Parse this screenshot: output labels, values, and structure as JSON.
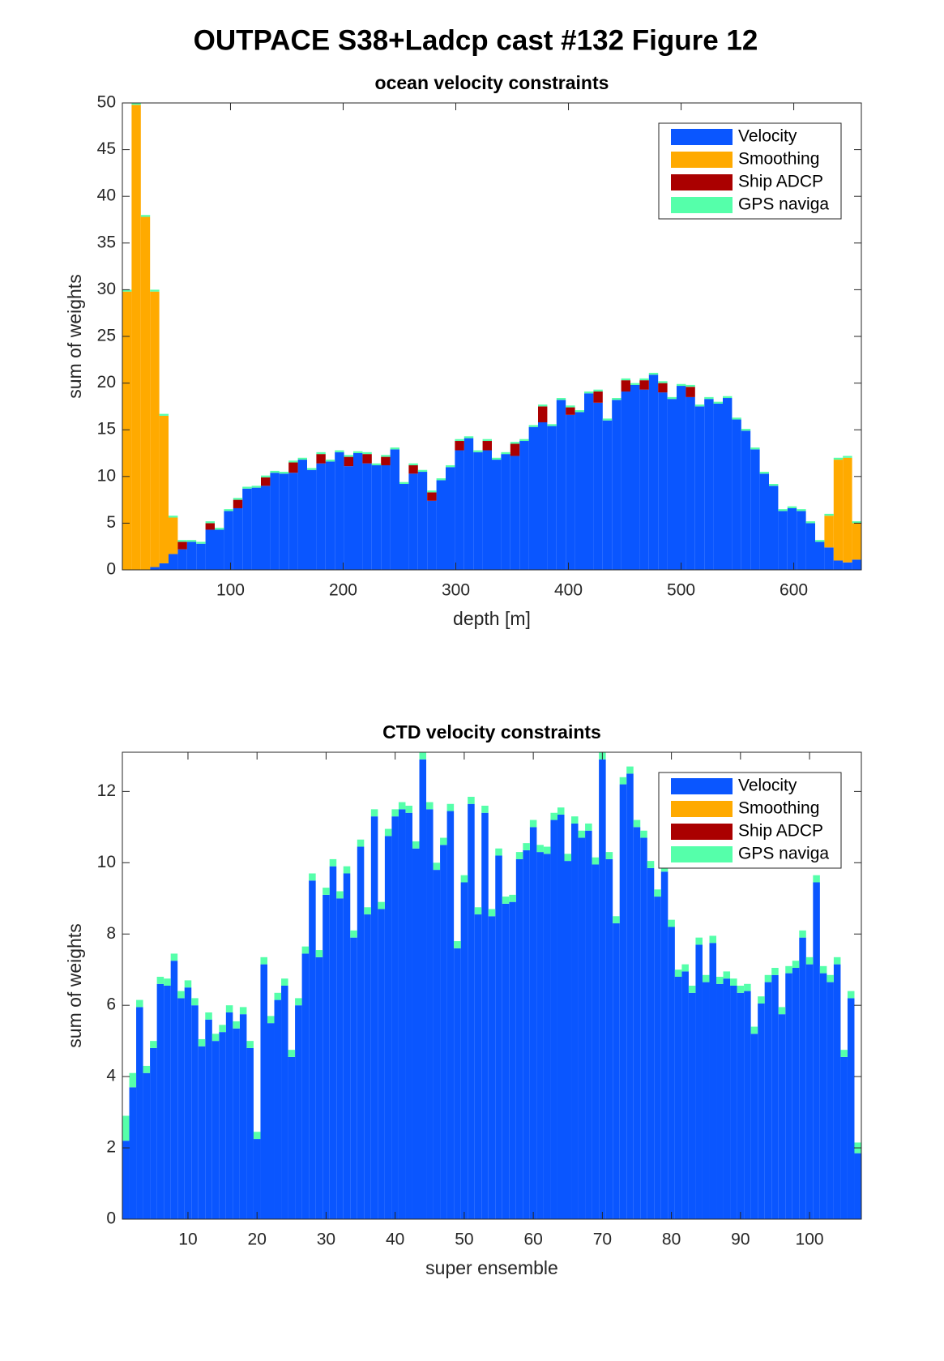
{
  "title": "OUTPACE S38+Ladcp cast #132  Figure 12",
  "chart_data": [
    {
      "type": "bar",
      "stacked": true,
      "title": "ocean velocity constraints",
      "xlabel": "depth [m]",
      "ylabel": "sum of weights",
      "x": [
        8.1,
        16.3,
        24.5,
        32.7,
        40.9,
        49.1,
        57.3,
        65.5,
        73.7,
        81.9,
        90.1,
        98.3,
        106.5,
        114.7,
        122.9,
        131.1,
        139.3,
        147.5,
        155.7,
        163.9,
        172.1,
        180.3,
        188.5,
        196.7,
        204.9,
        213.1,
        221.3,
        229.5,
        237.7,
        245.9,
        254.1,
        262.3,
        270.5,
        278.7,
        286.9,
        295.1,
        303.3,
        311.5,
        319.7,
        327.9,
        336.1,
        344.3,
        352.5,
        360.7,
        368.9,
        377.1,
        385.3,
        393.5,
        401.7,
        409.9,
        418.1,
        426.3,
        434.5,
        442.7,
        450.9,
        459.1,
        467.3,
        475.5,
        483.7,
        491.9,
        500.1,
        508.3,
        516.5,
        524.7,
        532.9,
        541.1,
        549.3,
        557.5,
        565.7,
        573.9,
        582.1,
        590.3,
        598.5,
        606.7,
        614.9,
        623.1,
        631.3,
        639.5,
        647.7,
        655.9
      ],
      "xlim": [
        4,
        660
      ],
      "xticks": [
        100,
        200,
        300,
        400,
        500,
        600
      ],
      "ylim": [
        0,
        50
      ],
      "yticks": [
        0,
        5,
        10,
        15,
        20,
        25,
        30,
        35,
        40,
        45,
        50
      ],
      "legend": "upper right",
      "series": [
        {
          "name": "Velocity",
          "color": "#0a56ff",
          "values": [
            0,
            0,
            0,
            0.3,
            0.7,
            1.7,
            2.2,
            3.0,
            2.8,
            4.3,
            4.3,
            6.3,
            6.6,
            8.7,
            8.8,
            9.0,
            10.4,
            10.3,
            10.4,
            11.8,
            10.7,
            11.4,
            11.6,
            12.6,
            11.1,
            12.5,
            11.4,
            11.2,
            11.2,
            12.9,
            9.2,
            10.3,
            10.5,
            7.4,
            9.6,
            11.0,
            12.8,
            14.1,
            12.6,
            12.8,
            11.8,
            12.4,
            12.2,
            13.8,
            15.3,
            15.8,
            15.4,
            18.2,
            16.6,
            16.9,
            18.9,
            17.9,
            16.0,
            18.2,
            19.1,
            19.8,
            19.3,
            20.9,
            19.0,
            18.3,
            19.7,
            18.5,
            17.5,
            18.3,
            17.8,
            18.4,
            16.1,
            14.9,
            12.9,
            10.3,
            9.0,
            6.3,
            6.6,
            6.3,
            5.0,
            3.0,
            2.4,
            1.0,
            0.8,
            1.1
          ]
        },
        {
          "name": "Smoothing",
          "color": "#ffaa00",
          "values": [
            29.8,
            49.8,
            37.8,
            29.5,
            15.8,
            3.9,
            0,
            0,
            0,
            0,
            0,
            0,
            0,
            0,
            0,
            0,
            0,
            0,
            0,
            0,
            0,
            0,
            0,
            0,
            0,
            0,
            0,
            0,
            0,
            0,
            0,
            0,
            0,
            0,
            0,
            0,
            0,
            0,
            0,
            0,
            0,
            0,
            0,
            0,
            0,
            0,
            0,
            0,
            0,
            0,
            0,
            0,
            0,
            0,
            0,
            0,
            0,
            0,
            0,
            0,
            0,
            0,
            0,
            0,
            0,
            0,
            0,
            0,
            0,
            0,
            0,
            0,
            0,
            0,
            0,
            0,
            3.4,
            10.8,
            11.2,
            3.9
          ]
        },
        {
          "name": "Ship ADCP",
          "color": "#aa0000",
          "values": [
            0,
            0,
            0,
            0,
            0,
            0,
            0.8,
            0,
            0,
            0.7,
            0,
            0,
            0.9,
            0,
            0,
            0.9,
            0,
            0,
            1.1,
            0,
            0,
            1.0,
            0,
            0,
            1.0,
            0,
            1.0,
            0,
            0.9,
            0,
            0,
            0.9,
            0,
            0.9,
            0,
            0,
            1.0,
            0,
            0,
            1.0,
            0,
            0,
            1.3,
            0,
            0,
            1.7,
            0,
            0,
            0.8,
            0,
            0,
            1.2,
            0,
            0,
            1.2,
            0,
            1.0,
            0,
            1.0,
            0,
            0,
            1.1,
            0,
            0,
            0,
            0,
            0,
            0,
            0,
            0,
            0,
            0,
            0,
            0,
            0,
            0,
            0,
            0,
            0,
            0
          ]
        },
        {
          "name": "GPS naviga",
          "color": "#55ffaa",
          "values": [
            0.2,
            0.2,
            0.2,
            0.2,
            0.2,
            0.2,
            0.2,
            0.2,
            0.2,
            0.2,
            0.2,
            0.2,
            0.2,
            0.2,
            0.2,
            0.2,
            0.2,
            0.2,
            0.2,
            0.2,
            0.2,
            0.2,
            0.2,
            0.2,
            0.2,
            0.2,
            0.2,
            0.2,
            0.2,
            0.2,
            0.2,
            0.2,
            0.2,
            0.2,
            0.2,
            0.2,
            0.2,
            0.2,
            0.2,
            0.2,
            0.2,
            0.2,
            0.2,
            0.2,
            0.2,
            0.2,
            0.2,
            0.2,
            0.2,
            0.2,
            0.2,
            0.2,
            0.2,
            0.2,
            0.2,
            0.2,
            0.2,
            0.2,
            0.2,
            0.2,
            0.2,
            0.2,
            0.2,
            0.2,
            0.2,
            0.2,
            0.2,
            0.2,
            0.2,
            0.2,
            0.2,
            0.2,
            0.2,
            0.2,
            0.2,
            0.2,
            0.2,
            0.2,
            0.2,
            0.2
          ]
        }
      ]
    },
    {
      "type": "bar",
      "stacked": true,
      "title": "CTD velocity constraints",
      "xlabel": "super ensemble",
      "ylabel": "sum of weights",
      "x": [
        1,
        2,
        3,
        4,
        5,
        6,
        7,
        8,
        9,
        10,
        11,
        12,
        13,
        14,
        15,
        16,
        17,
        18,
        19,
        20,
        21,
        22,
        23,
        24,
        25,
        26,
        27,
        28,
        29,
        30,
        31,
        32,
        33,
        34,
        35,
        36,
        37,
        38,
        39,
        40,
        41,
        42,
        43,
        44,
        45,
        46,
        47,
        48,
        49,
        50,
        51,
        52,
        53,
        54,
        55,
        56,
        57,
        58,
        59,
        60,
        61,
        62,
        63,
        64,
        65,
        66,
        67,
        68,
        69,
        70,
        71,
        72,
        73,
        74,
        75,
        76,
        77,
        78,
        79,
        80,
        81,
        82,
        83,
        84,
        85,
        86,
        87,
        88,
        89,
        90,
        91,
        92,
        93,
        94,
        95,
        96,
        97,
        98,
        99,
        100,
        101,
        102,
        103,
        104,
        105,
        106,
        107
      ],
      "xlim": [
        0.5,
        107.5
      ],
      "xticks": [
        10,
        20,
        30,
        40,
        50,
        60,
        70,
        80,
        90,
        100
      ],
      "ylim": [
        0,
        13.1
      ],
      "yticks": [
        0,
        2,
        4,
        6,
        8,
        10,
        12
      ],
      "legend": "upper right",
      "series": [
        {
          "name": "Velocity",
          "color": "#0a56ff",
          "values": [
            2.2,
            3.7,
            5.95,
            4.1,
            4.8,
            6.6,
            6.55,
            7.25,
            6.2,
            6.5,
            6.0,
            4.85,
            5.6,
            5.0,
            5.25,
            5.8,
            5.35,
            5.75,
            4.8,
            2.25,
            7.15,
            5.5,
            6.15,
            6.55,
            4.55,
            6.0,
            7.45,
            9.5,
            7.35,
            9.1,
            9.9,
            9.0,
            9.7,
            7.9,
            10.45,
            8.55,
            11.3,
            8.7,
            10.75,
            11.3,
            11.5,
            11.4,
            10.4,
            12.9,
            11.5,
            9.8,
            10.5,
            11.45,
            7.6,
            9.45,
            11.65,
            8.55,
            11.4,
            8.5,
            10.2,
            8.85,
            8.9,
            10.1,
            10.35,
            11.0,
            10.3,
            10.25,
            11.2,
            11.35,
            10.05,
            11.1,
            10.7,
            10.9,
            9.95,
            12.9,
            10.1,
            8.3,
            12.2,
            12.5,
            11.0,
            10.7,
            9.85,
            9.05,
            9.75,
            8.2,
            6.8,
            6.95,
            6.35,
            7.7,
            6.65,
            7.75,
            6.6,
            6.75,
            6.55,
            6.35,
            6.4,
            5.2,
            6.05,
            6.65,
            6.85,
            5.75,
            6.9,
            7.05,
            7.9,
            7.15,
            9.45,
            6.9,
            6.65,
            7.15,
            4.55,
            6.2,
            1.85
          ]
        },
        {
          "name": "Smoothing",
          "color": "#ffaa00"
        },
        {
          "name": "Ship ADCP",
          "color": "#aa0000"
        },
        {
          "name": "GPS naviga",
          "color": "#55ffaa",
          "values": [
            0.7,
            0.4,
            0.2,
            0.2,
            0.2,
            0.2,
            0.2,
            0.2,
            0.2,
            0.2,
            0.2,
            0.2,
            0.2,
            0.2,
            0.2,
            0.2,
            0.2,
            0.2,
            0.2,
            0.2,
            0.2,
            0.2,
            0.2,
            0.2,
            0.2,
            0.2,
            0.2,
            0.2,
            0.2,
            0.2,
            0.2,
            0.2,
            0.2,
            0.2,
            0.2,
            0.2,
            0.2,
            0.2,
            0.2,
            0.2,
            0.2,
            0.2,
            0.2,
            0.2,
            0.2,
            0.2,
            0.2,
            0.2,
            0.2,
            0.2,
            0.2,
            0.2,
            0.2,
            0.2,
            0.2,
            0.2,
            0.2,
            0.2,
            0.2,
            0.2,
            0.2,
            0.2,
            0.2,
            0.2,
            0.2,
            0.2,
            0.2,
            0.2,
            0.2,
            0.2,
            0.2,
            0.2,
            0.2,
            0.2,
            0.2,
            0.2,
            0.2,
            0.2,
            0.2,
            0.2,
            0.2,
            0.2,
            0.2,
            0.2,
            0.2,
            0.2,
            0.2,
            0.2,
            0.2,
            0.2,
            0.2,
            0.2,
            0.2,
            0.2,
            0.2,
            0.2,
            0.2,
            0.2,
            0.2,
            0.2,
            0.2,
            0.2,
            0.2,
            0.2,
            0.2,
            0.2,
            0.3
          ]
        }
      ]
    }
  ]
}
